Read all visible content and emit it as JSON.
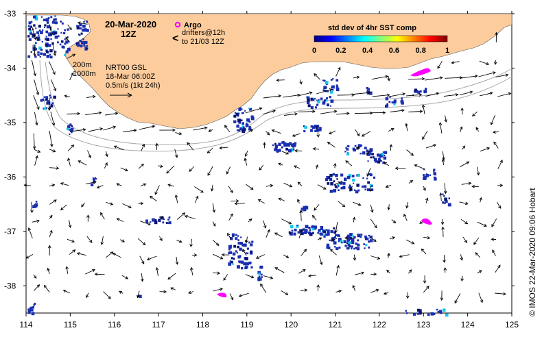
{
  "header": {
    "date": "20-Mar-2020",
    "time": "12Z"
  },
  "legend": {
    "argo_label": "Argo",
    "drifters_label": "drifters@12h",
    "drifters_range": "to 21/03 12Z",
    "drifter_symbol": "<",
    "argo_color": "#ff00ff",
    "drifter_color": "#ff00ff"
  },
  "colorbar": {
    "title": "std dev of 4hr SST comp",
    "ticks": [
      "0",
      "0.2",
      "0.4",
      "0.6",
      "0.8",
      "1"
    ],
    "min": 0,
    "max": 1,
    "colors": [
      "#000080",
      "#0000ff",
      "#0080ff",
      "#00ffff",
      "#80ff80",
      "#ffff00",
      "#ff8000",
      "#ff0000",
      "#800000"
    ]
  },
  "annotations": {
    "contour_200": "200m",
    "contour_1000": "1000m",
    "model": "NRT00 GSL",
    "model_time": "18-Mar 06:00Z",
    "scale": "0.5m/s (1kt 24h)"
  },
  "credit": "© IMOS 22-Mar-2020 09:06 Hobart",
  "axes": {
    "x_ticks": [
      "114",
      "115",
      "116",
      "117",
      "118",
      "119",
      "120",
      "121",
      "122",
      "123",
      "124",
      "125"
    ],
    "y_ticks": [
      "-33",
      "-34",
      "-35",
      "-36",
      "-37",
      "-38"
    ],
    "xlim": [
      114,
      125
    ],
    "ylim": [
      -38.5,
      -33
    ]
  },
  "colors": {
    "land": "#fccc9c",
    "sst_patch": "#1a2fb0",
    "sst_patch_dark": "#0a1470",
    "vector": "#000000",
    "contour": "#a8a8a8"
  }
}
